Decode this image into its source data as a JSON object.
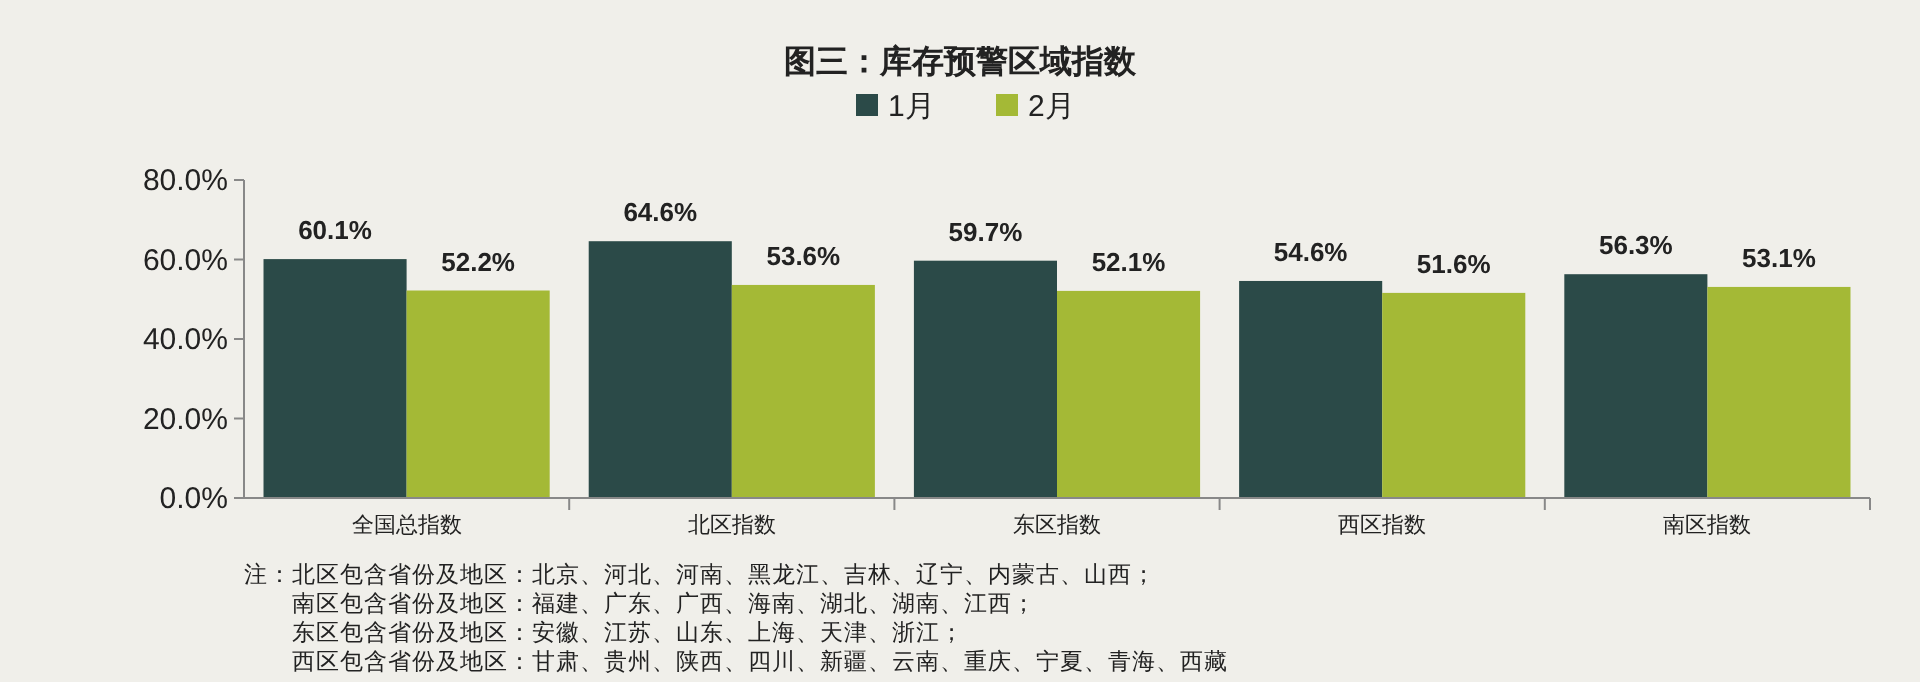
{
  "chart_data": {
    "type": "bar",
    "title": "图三：库存预警区域指数",
    "categories": [
      "全国总指数",
      "北区指数",
      "东区指数",
      "西区指数",
      "南区指数"
    ],
    "series": [
      {
        "name": "1月",
        "color": "#2b4a48",
        "values": [
          60.1,
          64.6,
          59.7,
          54.6,
          56.3
        ],
        "value_labels": [
          "60.1%",
          "64.6%",
          "59.7%",
          "54.6%",
          "56.3%"
        ]
      },
      {
        "name": "2月",
        "color": "#a4b936",
        "values": [
          52.2,
          53.6,
          52.1,
          51.6,
          53.1
        ],
        "value_labels": [
          "52.2%",
          "53.6%",
          "52.1%",
          "51.6%",
          "53.1%"
        ]
      }
    ],
    "ylim": [
      0,
      80
    ],
    "yticks": [
      {
        "value": 0,
        "label": "0.0%"
      },
      {
        "value": 20,
        "label": "20.0%"
      },
      {
        "value": 40,
        "label": "40.0%"
      },
      {
        "value": 60,
        "label": "60.0%"
      },
      {
        "value": 80,
        "label": "80.0%"
      }
    ],
    "grid": false,
    "legend": "top",
    "annotations": [
      "注：北区包含省份及地区：北京、河北、河南、黑龙江、吉林、辽宁、内蒙古、山西；",
      "南区包含省份及地区：福建、广东、广西、海南、湖北、湖南、江西；",
      "东区包含省份及地区：安徽、江苏、山东、上海、天津、浙江；",
      "西区包含省份及地区：甘肃、贵州、陕西、四川、新疆、云南、重庆、宁夏、青海、西藏"
    ]
  }
}
